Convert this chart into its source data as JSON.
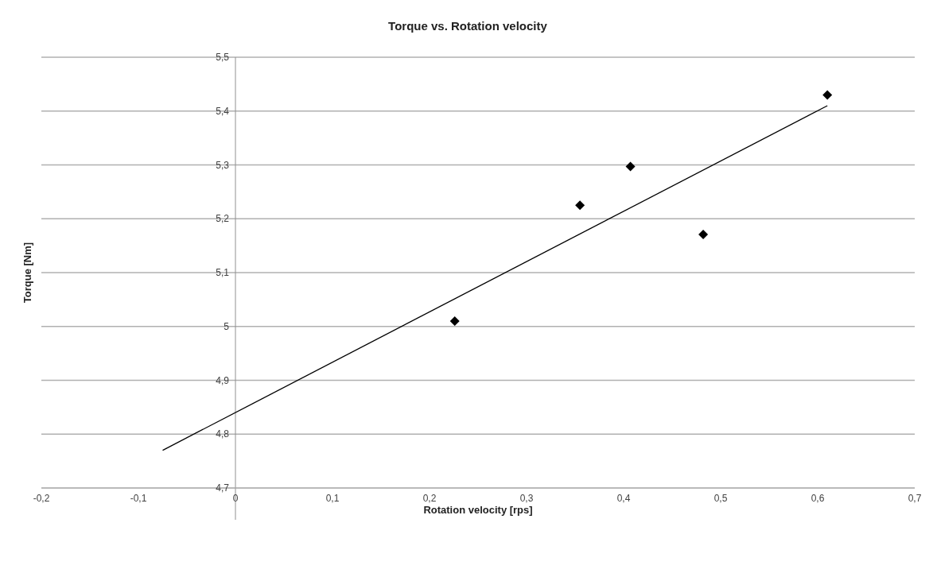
{
  "chart_data": {
    "type": "scatter",
    "title": "Torque vs. Rotation velocity",
    "xlabel": "Rotation velocity [rps]",
    "ylabel": "Torque [Nm]",
    "series": [
      {
        "type": "scatter",
        "color": "#000000",
        "marker": "diamond",
        "x": [
          0.226,
          0.355,
          0.407,
          0.482,
          0.61
        ],
        "values": [
          5.01,
          5.225,
          5.297,
          5.171,
          5.43
        ]
      },
      {
        "type": "line",
        "color": "#000000",
        "marker": "none",
        "x": [
          -0.075,
          0.61
        ],
        "values": [
          4.77,
          5.41
        ]
      }
    ],
    "xlim": [
      -0.2,
      0.7
    ],
    "xticks": [
      {
        "value": -0.2,
        "label": "-0,2"
      },
      {
        "value": -0.1,
        "label": "-0,1"
      },
      0,
      {
        "value": 0.1,
        "label": "0,1"
      },
      {
        "value": 0.2,
        "label": "0,2"
      },
      {
        "value": 0.3,
        "label": "0,3"
      },
      {
        "value": 0.4,
        "label": "0,4"
      },
      {
        "value": 0.5,
        "label": "0,5"
      },
      {
        "value": 0.6,
        "label": "0,6"
      },
      {
        "value": 0.7,
        "label": "0,7"
      }
    ],
    "ylim": [
      4.7,
      5.5
    ],
    "yticks": [
      {
        "value": 4.7,
        "label": "4,7"
      },
      {
        "value": 4.8,
        "label": "4,8"
      },
      {
        "value": 4.9,
        "label": "4,9"
      },
      5,
      {
        "value": 5.1,
        "label": "5,1"
      },
      {
        "value": 5.2,
        "label": "5,2"
      },
      {
        "value": 5.3,
        "label": "5,3"
      },
      {
        "value": 5.4,
        "label": "5,4"
      },
      {
        "value": 5.5,
        "label": "5,5"
      }
    ],
    "grid": "y",
    "legend": false
  }
}
